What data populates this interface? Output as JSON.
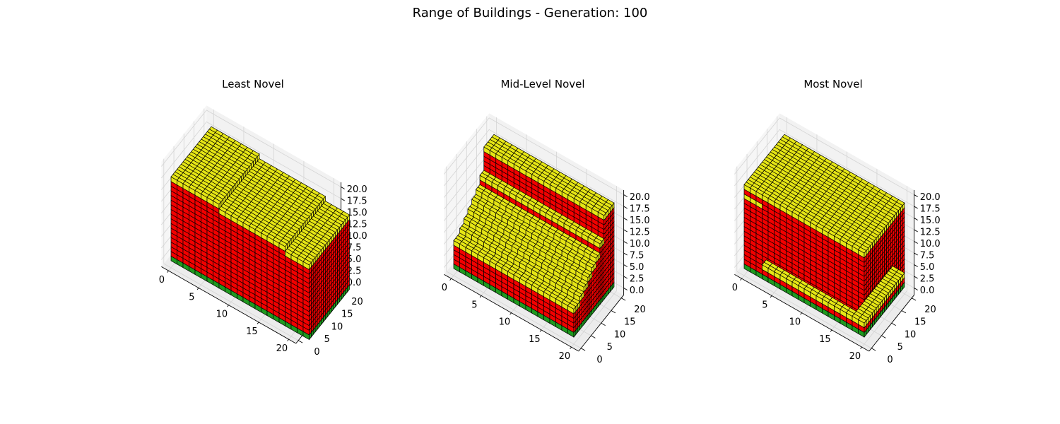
{
  "figure": {
    "title": "Range of Buildings - Generation: 100"
  },
  "colors": {
    "ground": "#1f9a1f",
    "wall": "#f20000",
    "roof": "#e6e615",
    "edge": "#000000",
    "pane": "#f2f2f2",
    "grid": "#d4d4d4"
  },
  "chart_data": [
    {
      "type": "voxel3d",
      "title": "Least Novel",
      "xlim": [
        0,
        20
      ],
      "ylim": [
        0,
        20
      ],
      "zlim": [
        0,
        20
      ],
      "xticks": [
        "0",
        "5",
        "10",
        "15",
        "20"
      ],
      "yticks": [
        "0",
        "5",
        "10",
        "15",
        "20"
      ],
      "zticks": [
        "0.0",
        "2.5",
        "5.0",
        "7.5",
        "10.0",
        "12.5",
        "15.0",
        "17.5",
        "20.0"
      ],
      "blocks": [
        {
          "x": [
            0,
            8
          ],
          "y": [
            0,
            20
          ],
          "z": [
            0,
            18
          ]
        },
        {
          "x": [
            8,
            19
          ],
          "y": [
            0,
            20
          ],
          "z": [
            0,
            17
          ]
        },
        {
          "x": [
            19,
            23
          ],
          "y": [
            0,
            20
          ],
          "z": [
            0,
            16
          ]
        }
      ]
    },
    {
      "type": "voxel3d",
      "title": "Mid-Level Novel",
      "xlim": [
        0,
        20
      ],
      "ylim": [
        0,
        20
      ],
      "zlim": [
        0,
        20
      ],
      "xticks": [
        "0",
        "5",
        "10",
        "15",
        "20"
      ],
      "yticks": [
        "0",
        "5",
        "10",
        "15",
        "20"
      ],
      "zticks": [
        "0.0",
        "2.5",
        "5.0",
        "7.5",
        "10.0",
        "12.5",
        "15.0",
        "17.5",
        "20.0"
      ],
      "blocks": [
        {
          "x": [
            0,
            20
          ],
          "y": [
            0,
            3
          ],
          "z": [
            0,
            6
          ]
        },
        {
          "x": [
            0,
            20
          ],
          "y": [
            3,
            5
          ],
          "z": [
            0,
            7
          ]
        },
        {
          "x": [
            0,
            20
          ],
          "y": [
            5,
            7
          ],
          "z": [
            0,
            8
          ]
        },
        {
          "x": [
            0,
            20
          ],
          "y": [
            7,
            9
          ],
          "z": [
            0,
            9
          ]
        },
        {
          "x": [
            0,
            20
          ],
          "y": [
            9,
            11
          ],
          "z": [
            0,
            10
          ]
        },
        {
          "x": [
            0,
            20
          ],
          "y": [
            11,
            13
          ],
          "z": [
            0,
            11
          ]
        },
        {
          "x": [
            0,
            20
          ],
          "y": [
            13,
            15
          ],
          "z": [
            0,
            13
          ]
        },
        {
          "x": [
            0,
            20
          ],
          "y": [
            15,
            20
          ],
          "z": [
            0,
            18
          ]
        }
      ]
    },
    {
      "type": "voxel3d",
      "title": "Most Novel",
      "xlim": [
        0,
        20
      ],
      "ylim": [
        0,
        20
      ],
      "zlim": [
        0,
        20
      ],
      "xticks": [
        "0",
        "5",
        "10",
        "15",
        "20"
      ],
      "yticks": [
        "0",
        "5",
        "10",
        "15",
        "20"
      ],
      "zticks": [
        "0.0",
        "2.5",
        "5.0",
        "7.5",
        "10.0",
        "12.5",
        "15.0",
        "17.5",
        "20.0"
      ],
      "blocks": [
        {
          "x": [
            0,
            3
          ],
          "y": [
            0,
            20
          ],
          "z": [
            0,
            16
          ]
        },
        {
          "x": [
            0,
            3
          ],
          "y": [
            0,
            20
          ],
          "z": [
            16,
            18
          ]
        },
        {
          "x": [
            3,
            20
          ],
          "y": [
            0,
            20
          ],
          "z": [
            3,
            18
          ]
        },
        {
          "x": [
            3,
            20
          ],
          "y": [
            0,
            2
          ],
          "z": [
            0,
            3
          ]
        },
        {
          "x": [
            18,
            20
          ],
          "y": [
            2,
            20
          ],
          "z": [
            0,
            3
          ]
        }
      ]
    }
  ]
}
